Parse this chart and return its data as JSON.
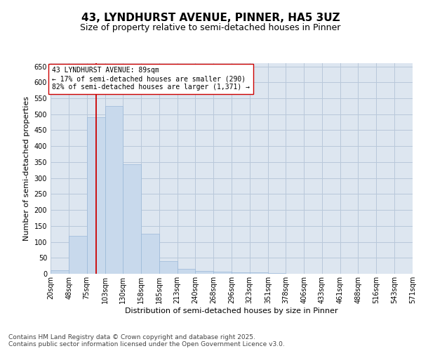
{
  "title": "43, LYNDHURST AVENUE, PINNER, HA5 3UZ",
  "subtitle": "Size of property relative to semi-detached houses in Pinner",
  "xlabel": "Distribution of semi-detached houses by size in Pinner",
  "ylabel": "Number of semi-detached properties",
  "bar_color": "#c8d9ec",
  "bar_edge_color": "#9ab8d8",
  "grid_color": "#b8c8da",
  "background_color": "#dde6f0",
  "vline_value": 89,
  "vline_color": "#cc0000",
  "annotation_text": "43 LYNDHURST AVENUE: 89sqm\n← 17% of semi-detached houses are smaller (290)\n82% of semi-detached houses are larger (1,371) →",
  "annotation_box_color": "#cc0000",
  "bin_edges": [
    20,
    48,
    75,
    103,
    130,
    158,
    185,
    213,
    240,
    268,
    296,
    323,
    351,
    378,
    406,
    433,
    461,
    488,
    516,
    543,
    571
  ],
  "bin_labels": [
    "20sqm",
    "48sqm",
    "75sqm",
    "103sqm",
    "130sqm",
    "158sqm",
    "185sqm",
    "213sqm",
    "240sqm",
    "268sqm",
    "296sqm",
    "323sqm",
    "351sqm",
    "378sqm",
    "406sqm",
    "433sqm",
    "461sqm",
    "488sqm",
    "516sqm",
    "543sqm",
    "571sqm"
  ],
  "bar_heights": [
    10,
    118,
    490,
    525,
    343,
    125,
    40,
    15,
    8,
    6,
    5,
    4,
    2,
    1,
    1,
    0,
    0,
    0,
    0,
    0,
    3
  ],
  "ylim": [
    0,
    660
  ],
  "yticks": [
    0,
    50,
    100,
    150,
    200,
    250,
    300,
    350,
    400,
    450,
    500,
    550,
    600,
    650
  ],
  "footnote": "Contains HM Land Registry data © Crown copyright and database right 2025.\nContains public sector information licensed under the Open Government Licence v3.0.",
  "title_fontsize": 11,
  "subtitle_fontsize": 9,
  "label_fontsize": 8,
  "tick_fontsize": 7,
  "footnote_fontsize": 6.5,
  "annotation_fontsize": 7
}
